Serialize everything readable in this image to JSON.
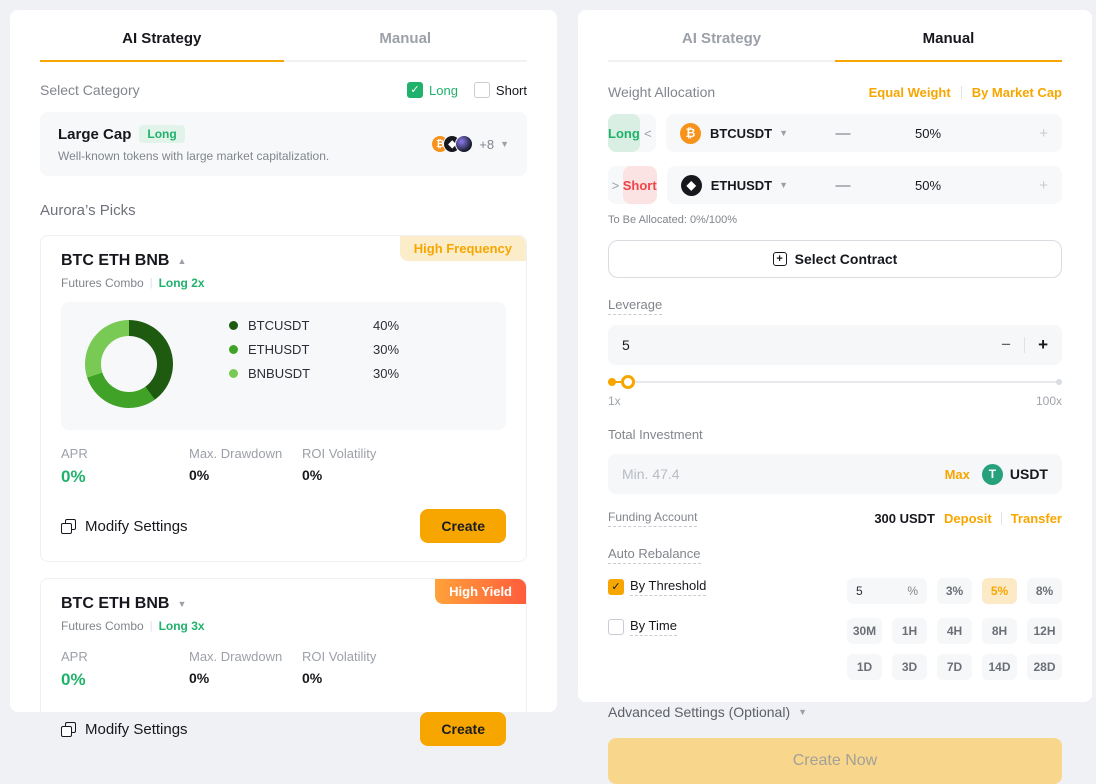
{
  "colors": {
    "accent_orange": "#f7a600",
    "green": "#20b26c",
    "red": "#ef454a",
    "btc_orange": "#f7931a",
    "usdt_green": "#26a17b"
  },
  "chart_data": {
    "type": "pie",
    "subtype": "donut",
    "legend_position": "right",
    "series": [
      {
        "name": "BTCUSDT",
        "value": 40,
        "label": "40%",
        "color": "#1e5a10"
      },
      {
        "name": "ETHUSDT",
        "value": 30,
        "label": "30%",
        "color": "#41a228"
      },
      {
        "name": "BNBUSDT",
        "value": 30,
        "label": "30%",
        "color": "#79c955"
      }
    ]
  },
  "left": {
    "tabs": [
      "AI Strategy",
      "Manual"
    ],
    "select_category_label": "Select Category",
    "long_label": "Long",
    "short_label": "Short",
    "category_card": {
      "title": "Large Cap",
      "badge": "Long",
      "description": "Well-known tokens with large market capitalization.",
      "more": "+8"
    },
    "picks_title": "Aurora’s Picks",
    "cards": [
      {
        "title": "BTC ETH BNB",
        "badge": "High Frequency",
        "type": "Futures Combo",
        "divider": "|",
        "direction": "Long 2x",
        "stats": [
          {
            "label": "APR",
            "value": "0%"
          },
          {
            "label": "Max. Drawdown",
            "value": "0%"
          },
          {
            "label": "ROI Volatility",
            "value": "0%"
          }
        ],
        "modify_label": "Modify Settings",
        "create_label": "Create"
      },
      {
        "title": "BTC ETH BNB",
        "badge": "High Yield",
        "type": "Futures Combo",
        "divider": "|",
        "direction": "Long 3x",
        "stats": [
          {
            "label": "APR",
            "value": "0%"
          },
          {
            "label": "Max. Drawdown",
            "value": "0%"
          },
          {
            "label": "ROI Volatility",
            "value": "0%"
          }
        ],
        "modify_label": "Modify Settings",
        "create_label": "Create"
      }
    ]
  },
  "right": {
    "tabs": [
      "AI Strategy",
      "Manual"
    ],
    "weight_allocation_label": "Weight Allocation",
    "equal_weight": "Equal Weight",
    "by_market_cap": "By Market Cap",
    "rows": [
      {
        "side": "Long",
        "symbol": "BTCUSDT",
        "minus": "—",
        "weight": "50%",
        "plus": "+"
      },
      {
        "side": "Short",
        "symbol": "ETHUSDT",
        "minus": "—",
        "weight": "50%",
        "plus": "+"
      }
    ],
    "to_be_allocated": "To Be Allocated: 0%/100%",
    "select_contract_label": "Select Contract",
    "leverage_label": "Leverage",
    "leverage_value": "5",
    "slider_min": "1x",
    "slider_max": "100x",
    "total_investment_label": "Total Investment",
    "investment_placeholder": "Min. 47.4",
    "max_label": "Max",
    "currency": "USDT",
    "funding_account_label": "Funding Account",
    "balance": "300 USDT",
    "deposit": "Deposit",
    "transfer": "Transfer",
    "auto_rebalance_label": "Auto Rebalance",
    "by_threshold_label": "By Threshold",
    "threshold_value": "5",
    "percent_sign": "%",
    "threshold_options": [
      "3%",
      "5%",
      "8%"
    ],
    "threshold_selected": "5%",
    "by_time_label": "By Time",
    "time_options": [
      "30M",
      "1H",
      "4H",
      "8H",
      "12H",
      "1D",
      "3D",
      "7D",
      "14D",
      "28D"
    ],
    "advanced_label": "Advanced Settings (Optional)",
    "create_now_label": "Create Now"
  }
}
